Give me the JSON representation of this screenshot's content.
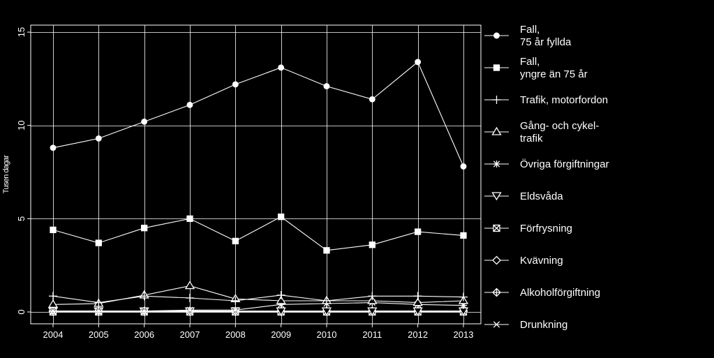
{
  "chart_data": {
    "type": "line",
    "ylabel": "Tusen dagar",
    "x": [
      2004,
      2005,
      2006,
      2007,
      2008,
      2009,
      2010,
      2011,
      2012,
      2013
    ],
    "xticks": [
      "2004",
      "2005",
      "2006",
      "2007",
      "2008",
      "2009",
      "2010",
      "2011",
      "2012",
      "2013"
    ],
    "yticks": [
      "0",
      "5",
      "10",
      "15"
    ],
    "ylim": [
      -0.5,
      15.2
    ],
    "grid": true,
    "legend_position": "right",
    "colors": {
      "background": "#000000",
      "foreground": "#ffffff"
    },
    "series": [
      {
        "name": "Fall,\n75 år fyllda",
        "marker": "circle",
        "values": [
          8.8,
          9.3,
          10.2,
          11.1,
          12.2,
          13.1,
          12.1,
          11.4,
          13.4,
          7.8
        ]
      },
      {
        "name": "Fall,\nyngre än 75 år",
        "marker": "square",
        "values": [
          4.4,
          3.7,
          4.5,
          5.0,
          3.8,
          5.1,
          3.3,
          3.6,
          4.3,
          4.1
        ]
      },
      {
        "name": "Trafik, motorfordon",
        "marker": "plus",
        "values": [
          0.85,
          0.5,
          0.85,
          0.75,
          0.6,
          0.9,
          0.6,
          0.85,
          0.85,
          0.8
        ]
      },
      {
        "name": "Gång- och cykel-\ntrafik",
        "marker": "triangle-up",
        "values": [
          0.4,
          0.45,
          0.9,
          1.4,
          0.7,
          0.6,
          0.6,
          0.6,
          0.5,
          0.6
        ]
      },
      {
        "name": "Övriga förgiftningar",
        "marker": "asterisk",
        "values": [
          0.05,
          0.05,
          0.05,
          0.1,
          0.1,
          0.4,
          0.45,
          0.5,
          0.4,
          0.35
        ]
      },
      {
        "name": "Eldsvåda",
        "marker": "triangle-down",
        "values": [
          0.03,
          0.03,
          0.03,
          0.03,
          0.03,
          0.03,
          0.03,
          0.03,
          0.03,
          0.03
        ]
      },
      {
        "name": "Förfrysning",
        "marker": "square-x",
        "values": [
          0.0,
          0.0,
          0.0,
          0.0,
          0.0,
          0.0,
          0.0,
          0.0,
          0.0,
          0.0
        ]
      },
      {
        "name": "Kvävning",
        "marker": "diamond",
        "values": [
          0.05,
          0.05,
          0.05,
          0.05,
          0.05,
          0.05,
          0.05,
          0.05,
          0.05,
          0.05
        ]
      },
      {
        "name": "Alkoholförgiftning",
        "marker": "diamond-plus",
        "values": [
          0.02,
          0.02,
          0.02,
          0.02,
          0.02,
          0.02,
          0.02,
          0.05,
          0.05,
          0.05
        ]
      },
      {
        "name": "Drunkning",
        "marker": "x",
        "values": [
          0.02,
          0.02,
          0.02,
          0.05,
          0.02,
          0.02,
          0.02,
          0.02,
          0.02,
          0.02
        ]
      }
    ]
  }
}
